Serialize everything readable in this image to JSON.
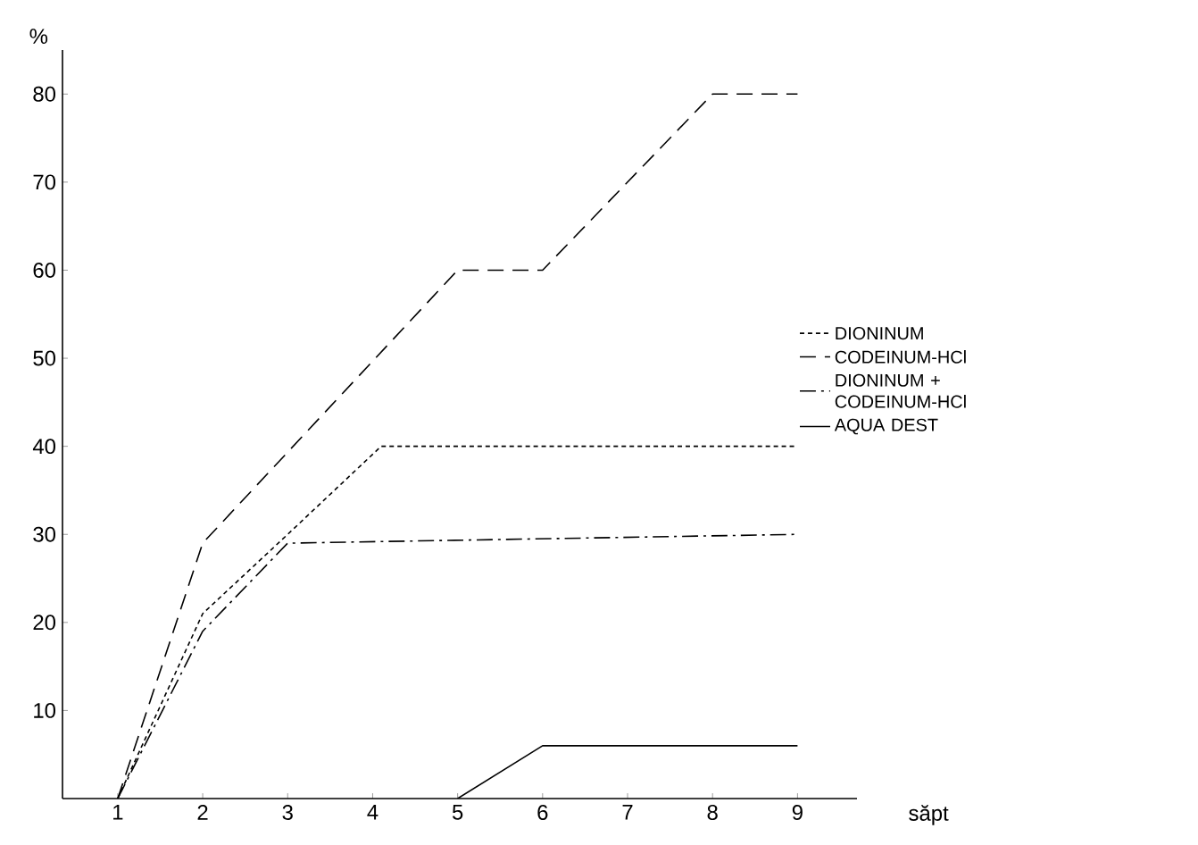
{
  "chart_data": {
    "type": "line",
    "xlabel": "săpt",
    "ylabel": "%",
    "xlim": [
      0.35,
      9.7
    ],
    "ylim": [
      0,
      85
    ],
    "xticks": [
      1,
      2,
      3,
      4,
      5,
      6,
      7,
      8,
      9
    ],
    "yticks": [
      10,
      20,
      30,
      40,
      50,
      60,
      70,
      80
    ],
    "legend": "right",
    "grid": false,
    "marker": "none",
    "series": [
      {
        "name": "DIONINUM",
        "color": "#000000",
        "line_style": "dotted",
        "x": [
          1,
          2,
          3,
          4.1,
          9
        ],
        "values": [
          0,
          21,
          30,
          40,
          40
        ]
      },
      {
        "name": "CODEINUM-HCl",
        "color": "#000000",
        "line_style": "dashed",
        "x": [
          1,
          2,
          5,
          6,
          8,
          9
        ],
        "values": [
          0,
          29,
          60,
          60,
          80,
          80
        ]
      },
      {
        "name": "DIONINUM + CODEINUM-HCl",
        "color": "#000000",
        "line_style": "dashdot",
        "x": [
          1,
          2,
          3,
          9
        ],
        "values": [
          0,
          19,
          29,
          30
        ]
      },
      {
        "name": "AQUA DEST",
        "color": "#000000",
        "line_style": "solid",
        "x": [
          5,
          6,
          9
        ],
        "values": [
          0,
          6,
          6
        ]
      }
    ]
  }
}
